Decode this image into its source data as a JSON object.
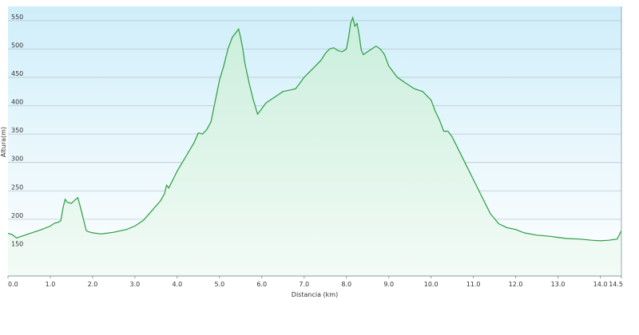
{
  "chart_data": {
    "type": "area",
    "title": "",
    "xlabel": "Distancia  (km)",
    "ylabel": "Altura(m)",
    "xlim": [
      0,
      14.5
    ],
    "ylim": [
      100,
      575
    ],
    "x_ticks": [
      "0.0",
      "1.0",
      "2.0",
      "3.0",
      "4.0",
      "5.0",
      "6.0",
      "7.0",
      "8.0",
      "9.0",
      "10.0",
      "11.0",
      "12.0",
      "13.0",
      "14.0",
      "14.5"
    ],
    "y_ticks": [
      "150",
      "200",
      "250",
      "300",
      "350",
      "400",
      "450",
      "500",
      "550"
    ],
    "grid": true,
    "colors": {
      "line": "#2a9d3f",
      "fill_top": "#c9eedc",
      "fill_bottom": "#f3fbf6",
      "bg_top": "#cfeefa",
      "bg_bottom": "#ffffff",
      "grid": "#b9c7cf"
    },
    "series": [
      {
        "x": [
          0.0,
          0.1,
          0.2,
          0.4,
          0.6,
          0.8,
          1.0,
          1.1,
          1.2,
          1.25,
          1.3,
          1.35,
          1.4,
          1.5,
          1.6,
          1.65,
          1.7,
          1.75,
          1.8,
          1.85,
          1.9,
          2.0,
          2.2,
          2.5,
          2.8,
          3.0,
          3.2,
          3.4,
          3.6,
          3.7,
          3.75,
          3.8,
          4.0,
          4.2,
          4.4,
          4.5,
          4.6,
          4.7,
          4.8,
          5.0,
          5.1,
          5.2,
          5.3,
          5.4,
          5.45,
          5.5,
          5.55,
          5.6,
          5.7,
          5.8,
          5.9,
          6.0,
          6.1,
          6.2,
          6.3,
          6.5,
          6.7,
          6.8,
          6.9,
          7.0,
          7.2,
          7.4,
          7.5,
          7.6,
          7.7,
          7.8,
          7.9,
          8.0,
          8.05,
          8.1,
          8.15,
          8.2,
          8.25,
          8.3,
          8.35,
          8.4,
          8.5,
          8.6,
          8.7,
          8.8,
          8.9,
          9.0,
          9.2,
          9.4,
          9.6,
          9.8,
          10.0,
          10.1,
          10.2,
          10.3,
          10.4,
          10.5,
          10.6,
          10.8,
          11.0,
          11.2,
          11.4,
          11.6,
          11.8,
          12.0,
          12.2,
          12.5,
          12.8,
          13.0,
          13.2,
          13.5,
          13.8,
          14.0,
          14.2,
          14.4,
          14.5
        ],
        "y": [
          175,
          173,
          167,
          172,
          177,
          182,
          188,
          193,
          195,
          198,
          220,
          235,
          230,
          228,
          235,
          238,
          225,
          210,
          195,
          180,
          178,
          176,
          174,
          177,
          182,
          188,
          198,
          215,
          232,
          245,
          260,
          255,
          285,
          310,
          335,
          352,
          350,
          358,
          372,
          445,
          470,
          500,
          520,
          530,
          535,
          520,
          500,
          475,
          440,
          410,
          385,
          395,
          405,
          410,
          415,
          425,
          428,
          430,
          440,
          450,
          465,
          480,
          492,
          500,
          502,
          497,
          495,
          500,
          520,
          545,
          555,
          540,
          545,
          525,
          498,
          490,
          495,
          500,
          505,
          500,
          490,
          470,
          450,
          440,
          430,
          425,
          410,
          390,
          375,
          355,
          355,
          345,
          330,
          300,
          270,
          240,
          210,
          192,
          185,
          182,
          176,
          172,
          170,
          168,
          166,
          165,
          163,
          162,
          163,
          165,
          180
        ]
      }
    ]
  }
}
